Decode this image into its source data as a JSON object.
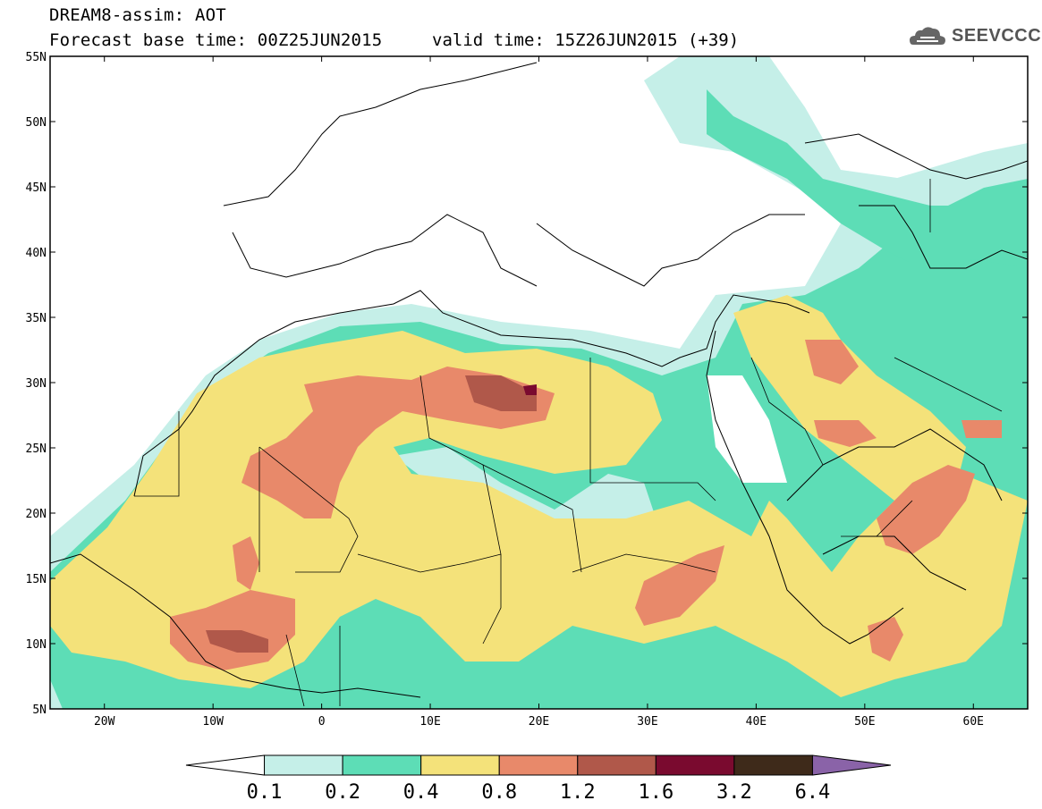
{
  "header": {
    "model": "DREAM8-assim: AOT",
    "base_time": "Forecast base time: 00Z25JUN2015",
    "valid_time": "valid time: 15Z26JUN2015 (+39)",
    "logo": "SEEVCCC"
  },
  "map": {
    "projection": "lat-lon",
    "lon_range": [
      -25,
      65
    ],
    "lat_range": [
      5,
      55
    ],
    "lon_ticks": [
      "20W",
      "10W",
      "0",
      "10E",
      "20E",
      "30E",
      "40E",
      "50E",
      "60E"
    ],
    "lat_ticks": [
      "55N",
      "50N",
      "45N",
      "40N",
      "35N",
      "30N",
      "25N",
      "20N",
      "15N",
      "10N",
      "5N"
    ]
  },
  "legend": {
    "levels": [
      "0.1",
      "0.2",
      "0.4",
      "0.8",
      "1.2",
      "1.6",
      "3.2",
      "6.4"
    ],
    "colors": [
      "#ffffff",
      "#c5efe8",
      "#5dddb6",
      "#f4e27a",
      "#e8896a",
      "#b0584a",
      "#7a0a2f",
      "#3e2a1a",
      "#8a63a8"
    ]
  }
}
